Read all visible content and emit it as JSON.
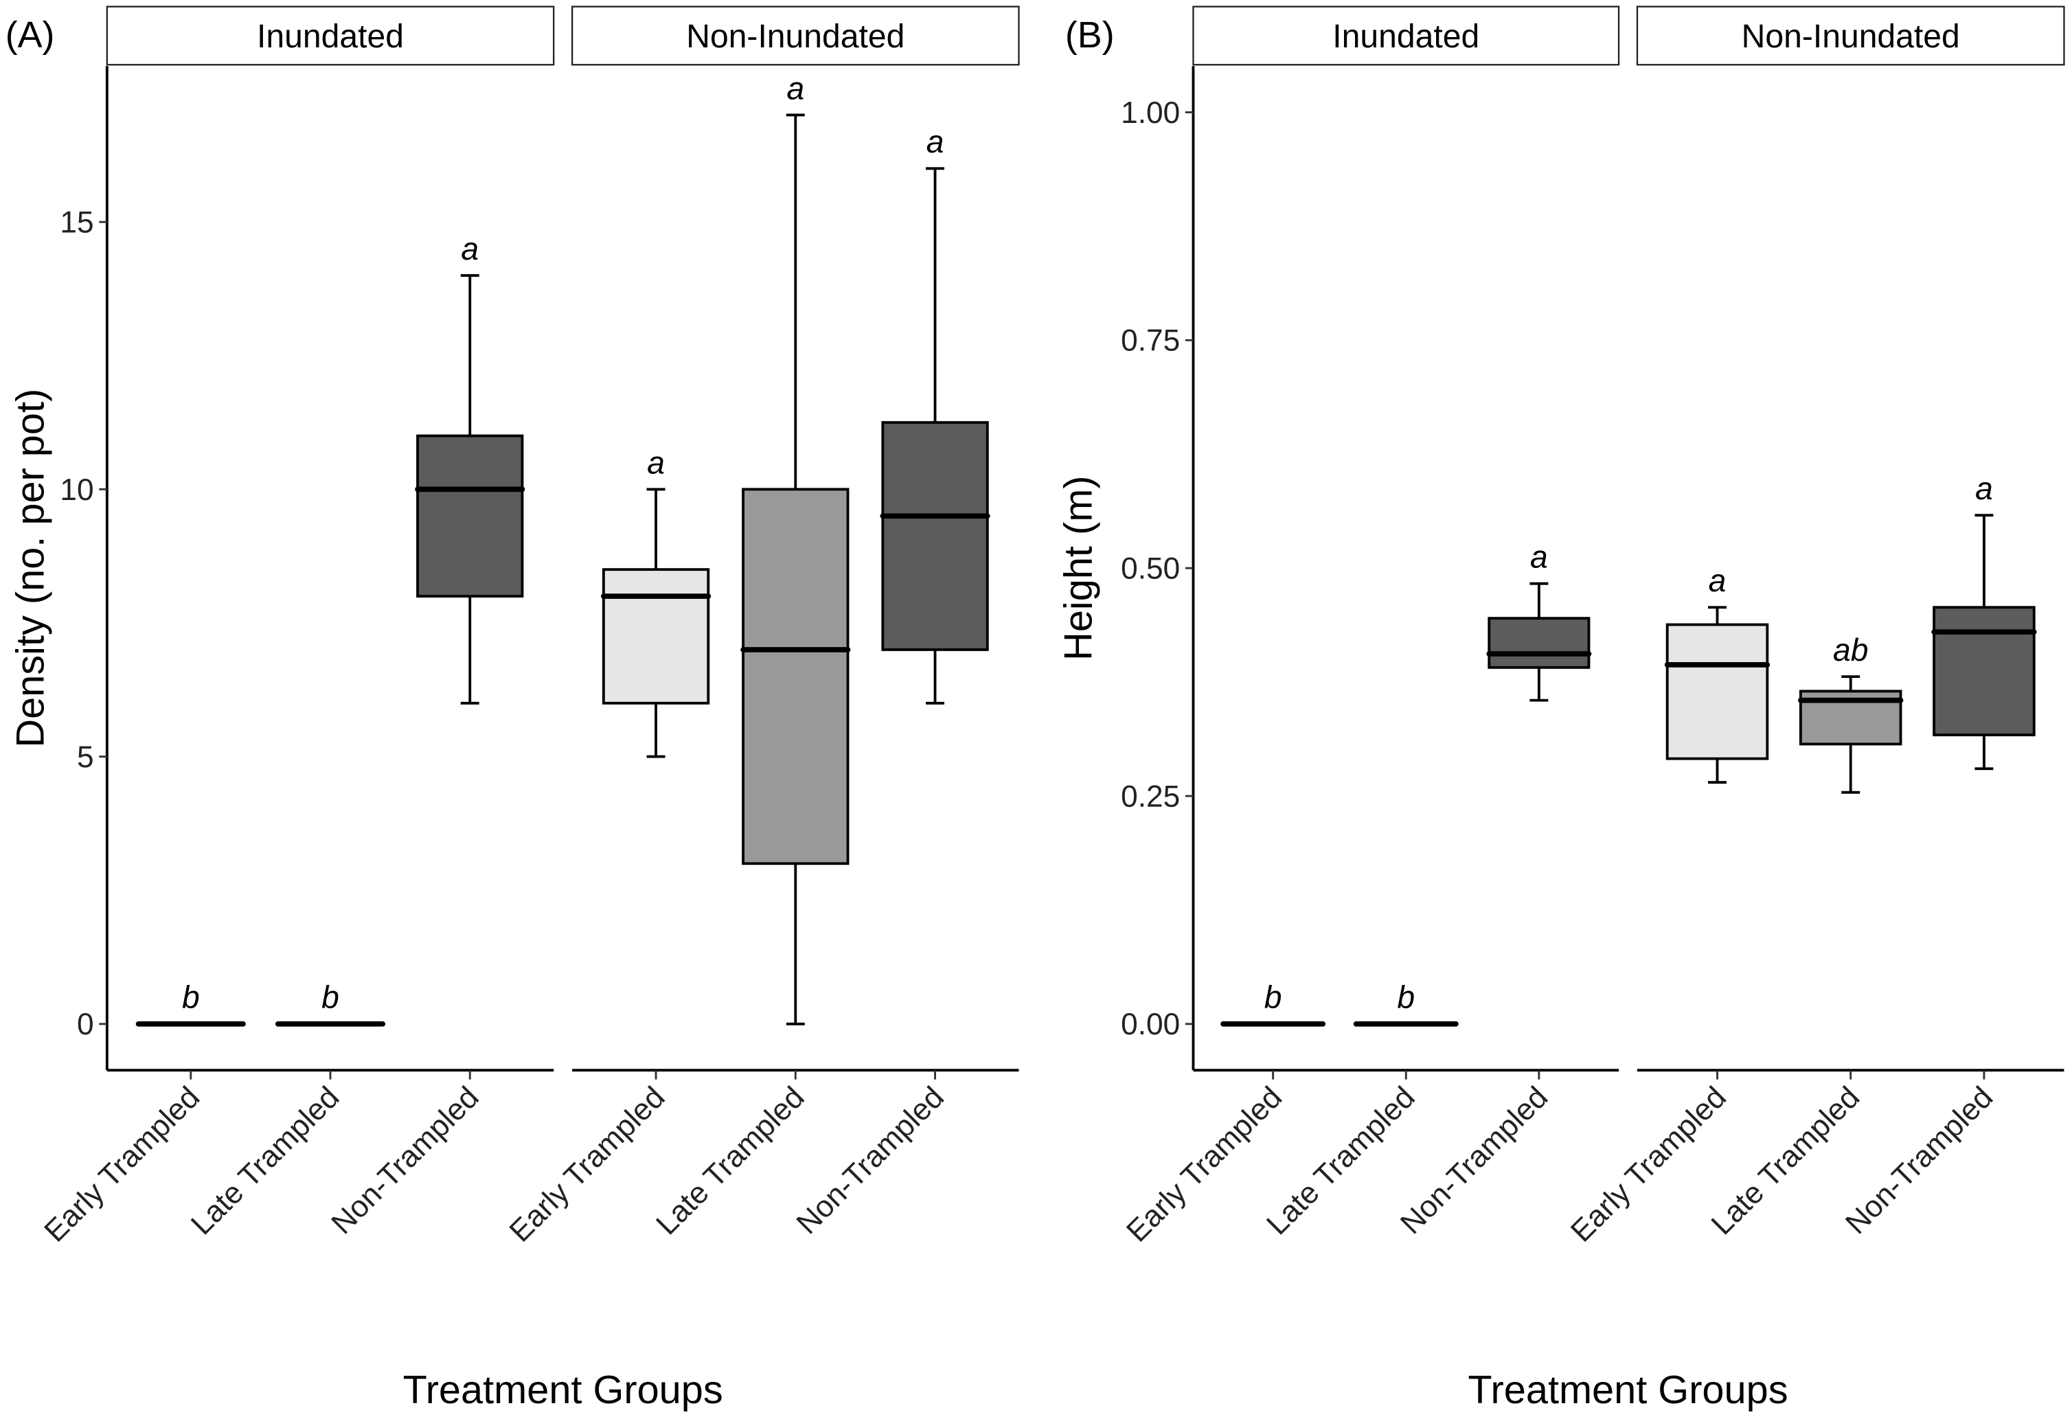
{
  "chart_data": [
    {
      "type": "box",
      "panel_label": "(A)",
      "title": "",
      "xlabel": "Treatment Groups",
      "ylabel": "Density (no. per pot)",
      "ylim": [
        -0.4,
        17.8
      ],
      "yticks": [
        0,
        5,
        10,
        15
      ],
      "ytick_labels": [
        "0",
        "5",
        "10",
        "15"
      ],
      "grid": false,
      "facets": [
        {
          "label": "Inundated",
          "groups": [
            {
              "category": "Early Trampled",
              "fill": "#e6e6e6",
              "min": 0,
              "q1": 0,
              "median": 0,
              "q3": 0,
              "max": 0,
              "sig": "b"
            },
            {
              "category": "Late Trampled",
              "fill": "#999999",
              "min": 0,
              "q1": 0,
              "median": 0,
              "q3": 0,
              "max": 0,
              "sig": "b"
            },
            {
              "category": "Non-Trampled",
              "fill": "#5c5c5c",
              "min": 6,
              "q1": 8,
              "median": 10,
              "q3": 11,
              "max": 14,
              "sig": "a"
            }
          ]
        },
        {
          "label": "Non-Inundated",
          "groups": [
            {
              "category": "Early Trampled",
              "fill": "#e6e6e6",
              "min": 5,
              "q1": 6,
              "median": 8,
              "q3": 8.5,
              "max": 10,
              "sig": "a"
            },
            {
              "category": "Late Trampled",
              "fill": "#999999",
              "min": 0,
              "q1": 3,
              "median": 7,
              "q3": 10,
              "max": 17,
              "sig": "a"
            },
            {
              "category": "Non-Trampled",
              "fill": "#5c5c5c",
              "min": 6,
              "q1": 7,
              "median": 9.5,
              "q3": 11.25,
              "max": 16,
              "sig": "a"
            }
          ]
        }
      ]
    },
    {
      "type": "box",
      "panel_label": "(B)",
      "title": "",
      "xlabel": "Treatment Groups",
      "ylabel": "Height (m)",
      "ylim": [
        -0.05,
        1.05
      ],
      "yticks": [
        0,
        0.25,
        0.5,
        0.75,
        1.0
      ],
      "ytick_labels": [
        "0.00",
        "0.25",
        "0.50",
        "0.75",
        "1.00"
      ],
      "grid": false,
      "facets": [
        {
          "label": "Inundated",
          "groups": [
            {
              "category": "Early Trampled",
              "fill": "#e6e6e6",
              "min": 0,
              "q1": 0,
              "median": 0,
              "q3": 0,
              "max": 0,
              "sig": "b"
            },
            {
              "category": "Late Trampled",
              "fill": "#999999",
              "min": 0,
              "q1": 0,
              "median": 0,
              "q3": 0,
              "max": 0,
              "sig": "b"
            },
            {
              "category": "Non-Trampled",
              "fill": "#5c5c5c",
              "min": 0.355,
              "q1": 0.391,
              "median": 0.406,
              "q3": 0.445,
              "max": 0.483,
              "sig": "a"
            }
          ]
        },
        {
          "label": "Non-Inundated",
          "groups": [
            {
              "category": "Early Trampled",
              "fill": "#e6e6e6",
              "min": 0.265,
              "q1": 0.291,
              "median": 0.394,
              "q3": 0.438,
              "max": 0.457,
              "sig": "a"
            },
            {
              "category": "Late Trampled",
              "fill": "#999999",
              "min": 0.254,
              "q1": 0.307,
              "median": 0.355,
              "q3": 0.365,
              "max": 0.381,
              "sig": "ab"
            },
            {
              "category": "Non-Trampled",
              "fill": "#5c5c5c",
              "min": 0.28,
              "q1": 0.317,
              "median": 0.43,
              "q3": 0.457,
              "max": 0.558,
              "sig": "a"
            }
          ]
        }
      ]
    }
  ]
}
